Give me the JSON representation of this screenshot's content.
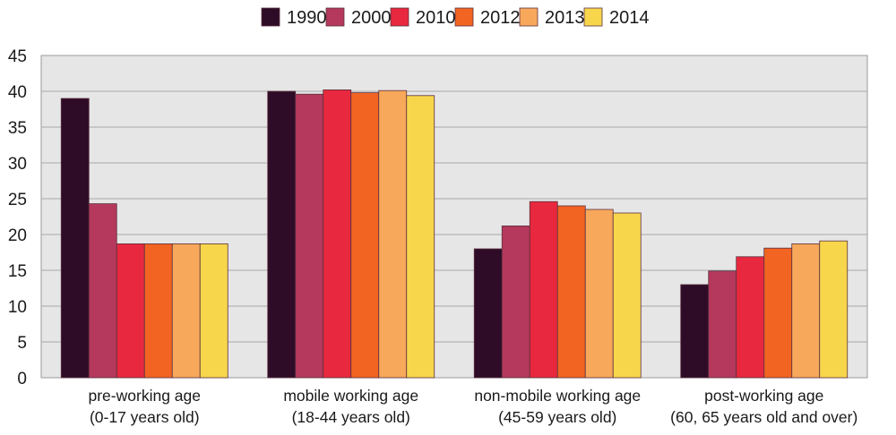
{
  "chart_data": {
    "type": "bar",
    "title": "",
    "xlabel": "",
    "ylabel": "",
    "ylim": [
      0,
      45
    ],
    "yticks": [
      "0",
      "5",
      "10",
      "15",
      "20",
      "25",
      "30",
      "35",
      "40",
      "45"
    ],
    "grid": true,
    "legend_position": "top",
    "categories": [
      [
        "pre-working age",
        "(0-17 years old)"
      ],
      [
        "mobile working age",
        "(18-44 years old)"
      ],
      [
        "non-mobile working age",
        "(45-59 years old)"
      ],
      [
        "post-working age",
        "(60, 65 years old and over)"
      ]
    ],
    "series": [
      {
        "name": "1990",
        "color": "#2e0c27",
        "values": [
          39.0,
          40.0,
          18.0,
          13.0
        ]
      },
      {
        "name": "2000",
        "color": "#b5395c",
        "values": [
          24.3,
          39.6,
          21.2,
          14.9
        ]
      },
      {
        "name": "2010",
        "color": "#e8283e",
        "values": [
          18.7,
          40.2,
          24.6,
          16.9
        ]
      },
      {
        "name": "2012",
        "color": "#f26422",
        "values": [
          18.7,
          39.8,
          24.0,
          18.1
        ]
      },
      {
        "name": "2013",
        "color": "#f7a85a",
        "values": [
          18.7,
          40.1,
          23.5,
          18.7
        ]
      },
      {
        "name": "2014",
        "color": "#f7d64c",
        "values": [
          18.7,
          39.4,
          23.0,
          19.1
        ]
      }
    ]
  }
}
